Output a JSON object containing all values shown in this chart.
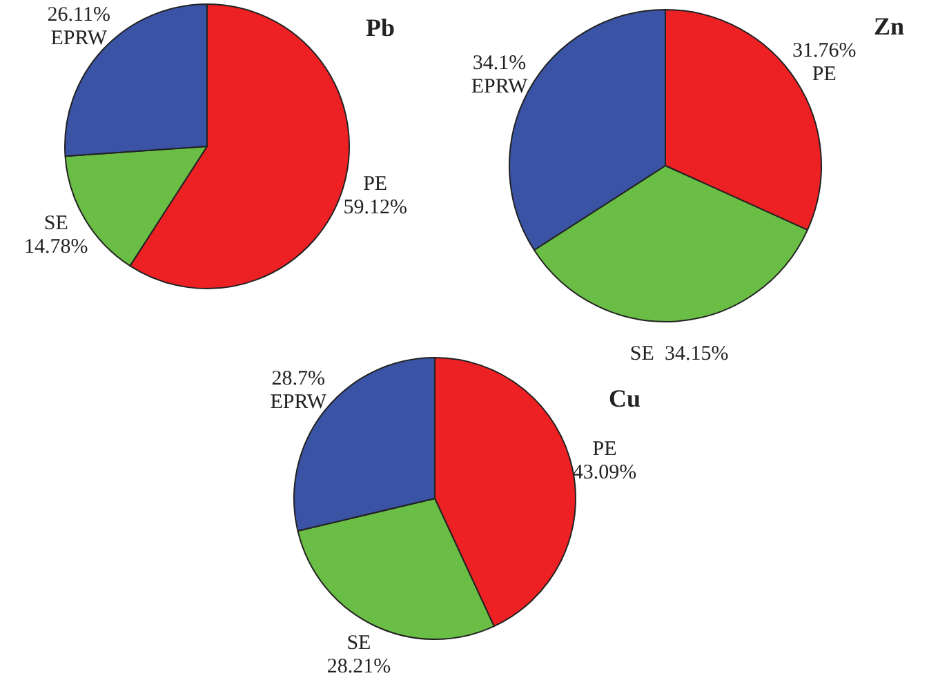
{
  "chart_data": [
    {
      "type": "pie",
      "title": "Pb",
      "categories": [
        "PE",
        "SE",
        "EPRW"
      ],
      "values": [
        59.12,
        14.78,
        26.11
      ],
      "value_labels": [
        "59.12%",
        "14.78%",
        "26.11%"
      ],
      "colors": [
        "#ed2024",
        "#6abd45",
        "#3a53a4"
      ],
      "legend": false
    },
    {
      "type": "pie",
      "title": "Zn",
      "categories": [
        "PE",
        "SE",
        "EPRW"
      ],
      "values": [
        31.76,
        34.15,
        34.1
      ],
      "value_labels": [
        "31.76%",
        "34.15%",
        "34.1%"
      ],
      "colors": [
        "#ed2024",
        "#6abd45",
        "#3a53a4"
      ],
      "legend": false
    },
    {
      "type": "pie",
      "title": "Cu",
      "categories": [
        "PE",
        "SE",
        "EPRW"
      ],
      "values": [
        43.09,
        28.21,
        28.7
      ],
      "value_labels": [
        "43.09%",
        "28.21%",
        "28.7%"
      ],
      "colors": [
        "#ed2024",
        "#6abd45",
        "#3a53a4"
      ],
      "legend": false
    }
  ]
}
